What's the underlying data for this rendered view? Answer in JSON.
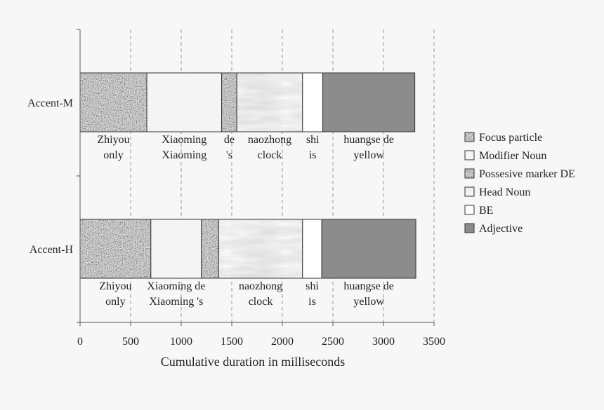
{
  "chart_data": {
    "type": "bar",
    "orientation": "horizontal",
    "stacked": true,
    "xlabel": "Cumulative duration in milliseconds",
    "xlim": [
      0,
      3500
    ],
    "xticks": [
      0,
      500,
      1000,
      1500,
      2000,
      2500,
      3000,
      3500
    ],
    "grid": "vertical dashed",
    "legend_position": "right",
    "categories": [
      "Accent-M",
      "Accent-H"
    ],
    "series": [
      {
        "name": "Focus particle",
        "values": [
          660,
          700
        ],
        "color": "#8a8a8a",
        "pattern": "granite"
      },
      {
        "name": "Modifier Noun",
        "values": [
          740,
          500
        ],
        "color": "#e8e8e8",
        "pattern": "speckle"
      },
      {
        "name": "Possesive marker DE",
        "values": [
          150,
          170
        ],
        "color": "#8a8a8a",
        "pattern": "granite"
      },
      {
        "name": "Head Noun",
        "values": [
          650,
          830
        ],
        "color": "#e6e6e6",
        "pattern": "marble"
      },
      {
        "name": "BE",
        "values": [
          200,
          190
        ],
        "color": "#ffffff",
        "pattern": "solid"
      },
      {
        "name": "Adjective",
        "values": [
          910,
          930
        ],
        "color": "#8c8c8c",
        "pattern": "solid"
      }
    ],
    "segment_labels": [
      [
        [
          "Zhiyou",
          "only"
        ],
        [
          "Xiaoming",
          "Xiaoming"
        ],
        [
          "de",
          "'s"
        ],
        [
          "naozhong",
          "clock"
        ],
        [
          "shi",
          "is"
        ],
        [
          "huangse de",
          "yellow"
        ]
      ],
      [
        [
          "Zhiyou",
          "only"
        ],
        [
          "Xiaoming de",
          "Xiaoming  's"
        ],
        null,
        [
          "naozhong",
          "clock"
        ],
        [
          "shi",
          "is"
        ],
        [
          "huangse de",
          "yellow"
        ]
      ]
    ]
  }
}
